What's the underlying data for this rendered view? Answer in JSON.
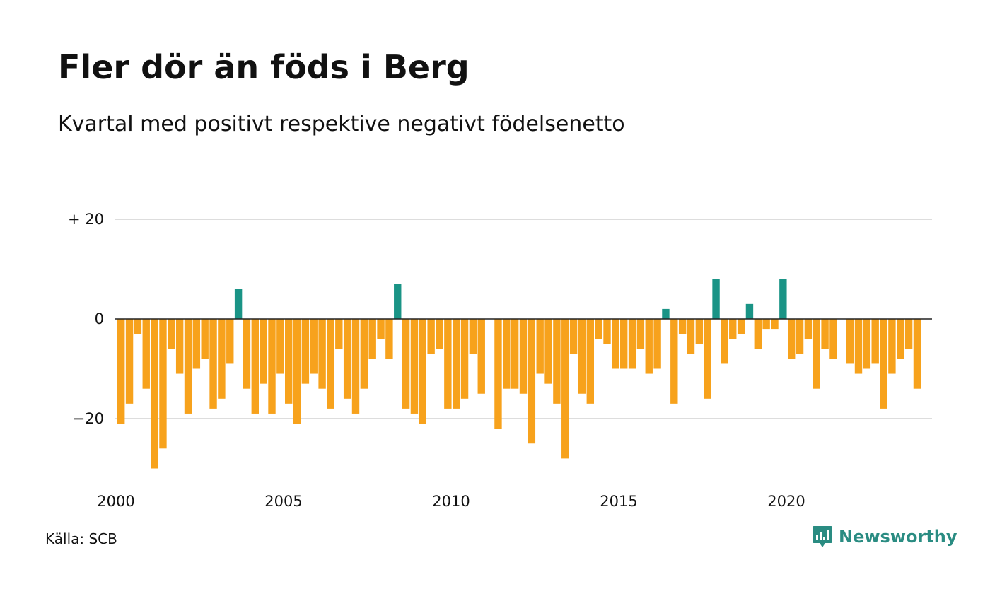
{
  "title": "Fler dör än föds i Berg",
  "subtitle": "Kvartal med positivt respektive negativt födelsenetto",
  "source": "Källa: SCB",
  "brand": {
    "name": "Newsworthy",
    "icon": "newsworthy-logo-icon"
  },
  "colors": {
    "positive": "#1a9486",
    "negative": "#f7a21c",
    "grid": "#dddddd",
    "zero_line": "#222222",
    "brand": "#2a8c82"
  },
  "chart_data": {
    "type": "bar",
    "title": "Fler dör än föds i Berg",
    "subtitle": "Kvartal med positivt respektive negativt födelsenetto",
    "xlabel": "",
    "ylabel": "",
    "ylim": [
      -30,
      20
    ],
    "y_ticks": [
      {
        "value": 20,
        "label": "+ 20"
      },
      {
        "value": 0,
        "label": "0"
      },
      {
        "value": -20,
        "label": "−20"
      }
    ],
    "x_ticks": [
      {
        "value": 2000,
        "label": "2000"
      },
      {
        "value": 2005,
        "label": "2005"
      },
      {
        "value": 2010,
        "label": "2010"
      },
      {
        "value": 2015,
        "label": "2015"
      },
      {
        "value": 2020,
        "label": "2020"
      }
    ],
    "grid": true,
    "x_unit": "quarter",
    "start_year": 2000,
    "values": [
      -21,
      -17,
      -3,
      -14,
      -30,
      -26,
      -6,
      -11,
      -19,
      -10,
      -8,
      -18,
      -16,
      -9,
      6,
      -14,
      -19,
      -13,
      -19,
      -11,
      -17,
      -21,
      -13,
      -11,
      -14,
      -18,
      -6,
      -16,
      -19,
      -14,
      -8,
      -4,
      -8,
      7,
      -18,
      -19,
      -21,
      -7,
      -6,
      -18,
      -18,
      -16,
      -7,
      -15,
      0,
      -22,
      -14,
      -14,
      -15,
      -25,
      -11,
      -13,
      -17,
      -28,
      -7,
      -15,
      -17,
      -4,
      -5,
      -10,
      -10,
      -10,
      -6,
      -11,
      -10,
      2,
      -17,
      -3,
      -7,
      -5,
      -16,
      8,
      -9,
      -4,
      -3,
      3,
      -6,
      -2,
      -2,
      8,
      -8,
      -7,
      -4,
      -14,
      -6,
      -8,
      0,
      -9,
      -11,
      -10,
      -9,
      -18,
      -11,
      -8,
      -6,
      -14
    ]
  }
}
